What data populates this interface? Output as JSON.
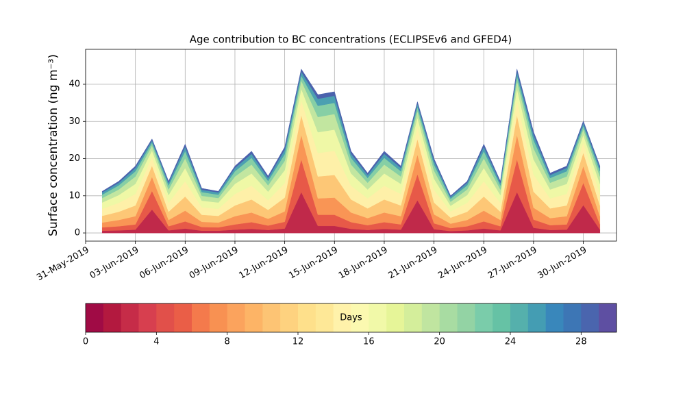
{
  "chart_data": {
    "type": "stacked_area",
    "title": "Age contribution to BC concentrations (ECLIPSEv6 and GFED4)",
    "y_label": "Surface concentration (ng m⁻³)",
    "x": [
      "2019-06-01",
      "2019-06-02",
      "2019-06-03",
      "2019-06-04",
      "2019-06-05",
      "2019-06-06",
      "2019-06-07",
      "2019-06-08",
      "2019-06-09",
      "2019-06-10",
      "2019-06-11",
      "2019-06-12",
      "2019-06-13",
      "2019-06-14",
      "2019-06-15",
      "2019-06-16",
      "2019-06-17",
      "2019-06-18",
      "2019-06-19",
      "2019-06-20",
      "2019-06-21",
      "2019-06-22",
      "2019-06-23",
      "2019-06-24",
      "2019-06-25",
      "2019-06-26",
      "2019-06-27",
      "2019-06-28",
      "2019-06-29",
      "2019-06-30",
      "2019-07-01"
    ],
    "xlim": [
      "2019-05-31",
      "2019-07-02"
    ],
    "xticks": [
      {
        "value": "2019-05-31",
        "label": "31-May-2019"
      },
      {
        "value": "2019-06-03",
        "label": "03-Jun-2019"
      },
      {
        "value": "2019-06-06",
        "label": "06-Jun-2019"
      },
      {
        "value": "2019-06-09",
        "label": "09-Jun-2019"
      },
      {
        "value": "2019-06-12",
        "label": "12-Jun-2019"
      },
      {
        "value": "2019-06-15",
        "label": "15-Jun-2019"
      },
      {
        "value": "2019-06-18",
        "label": "18-Jun-2019"
      },
      {
        "value": "2019-06-21",
        "label": "21-Jun-2019"
      },
      {
        "value": "2019-06-24",
        "label": "24-Jun-2019"
      },
      {
        "value": "2019-06-27",
        "label": "27-Jun-2019"
      },
      {
        "value": "2019-06-30",
        "label": "30-Jun-2019"
      }
    ],
    "ylim": [
      -2.2,
      49.4
    ],
    "yticks": [
      0,
      10,
      20,
      30,
      40
    ],
    "grid": true,
    "series": [
      {
        "color": "#c0294a",
        "values": [
          0.6,
          0.7,
          0.9,
          6.3,
          0.7,
          1.2,
          0.6,
          0.6,
          0.9,
          1.1,
          0.8,
          1.2,
          11.0,
          1.9,
          1.9,
          1.1,
          0.8,
          1.1,
          0.9,
          8.8,
          1.0,
          0.5,
          0.7,
          1.2,
          0.7,
          11.0,
          1.4,
          0.8,
          0.9,
          7.5,
          0.9
        ]
      },
      {
        "color": "#e75948",
        "values": [
          0.9,
          1.1,
          1.4,
          5.0,
          1.1,
          1.9,
          1.0,
          0.9,
          1.4,
          1.8,
          1.2,
          1.8,
          8.8,
          3.0,
          3.0,
          1.8,
          1.3,
          1.8,
          1.4,
          7.0,
          1.6,
          0.8,
          1.1,
          1.9,
          1.1,
          8.8,
          2.2,
          1.3,
          1.4,
          6.0,
          1.4
        ]
      },
      {
        "color": "#f99555",
        "values": [
          1.3,
          1.7,
          2.2,
          3.8,
          1.7,
          2.9,
          1.4,
          1.3,
          2.2,
          2.6,
          1.8,
          2.8,
          6.6,
          4.4,
          4.6,
          2.6,
          1.9,
          2.6,
          2.2,
          5.3,
          2.4,
          1.2,
          1.7,
          2.9,
          1.7,
          6.6,
          3.2,
          1.9,
          2.2,
          4.5,
          2.2
        ]
      },
      {
        "color": "#fdc776",
        "values": [
          1.8,
          2.2,
          2.9,
          3.0,
          2.2,
          3.8,
          1.9,
          1.8,
          2.9,
          3.5,
          2.4,
          3.7,
          5.3,
          5.9,
          6.1,
          3.5,
          2.6,
          3.5,
          2.9,
          4.2,
          3.2,
          1.6,
          2.2,
          3.8,
          2.2,
          5.3,
          4.3,
          2.6,
          2.9,
          3.6,
          2.9
        ]
      },
      {
        "color": "#fef0a8",
        "values": [
          1.9,
          2.4,
          3.1,
          2.3,
          2.4,
          4.1,
          2.0,
          1.9,
          3.1,
          3.7,
          2.6,
          3.9,
          4.0,
          6.3,
          6.5,
          3.7,
          2.7,
          3.7,
          3.1,
          3.2,
          3.4,
          1.7,
          2.4,
          4.1,
          2.4,
          4.0,
          4.6,
          2.7,
          3.1,
          2.7,
          3.1
        ]
      },
      {
        "color": "#eff8a6",
        "values": [
          1.7,
          2.1,
          2.7,
          1.8,
          2.1,
          3.6,
          1.8,
          1.7,
          2.7,
          3.3,
          2.3,
          3.5,
          3.1,
          5.6,
          5.7,
          3.3,
          2.4,
          3.3,
          2.7,
          2.5,
          3.0,
          1.5,
          2.1,
          3.6,
          2.1,
          3.1,
          4.1,
          2.4,
          2.7,
          2.1,
          2.7
        ]
      },
      {
        "color": "#c2e6a0",
        "values": [
          1.2,
          1.5,
          2.0,
          1.3,
          1.5,
          2.6,
          1.3,
          1.2,
          2.0,
          2.4,
          1.7,
          2.5,
          2.2,
          4.1,
          4.2,
          2.4,
          1.8,
          2.4,
          2.0,
          1.8,
          2.2,
          1.1,
          1.5,
          2.6,
          1.5,
          2.2,
          3.0,
          1.8,
          2.0,
          1.5,
          2.0
        ]
      },
      {
        "color": "#86cfa5",
        "values": [
          0.9,
          1.1,
          1.4,
          0.8,
          1.1,
          1.9,
          1.0,
          0.9,
          1.4,
          1.8,
          1.2,
          1.8,
          1.3,
          3.0,
          3.0,
          1.8,
          1.3,
          1.8,
          1.4,
          1.1,
          1.6,
          0.8,
          1.1,
          1.9,
          1.1,
          1.3,
          2.2,
          1.3,
          1.4,
          0.9,
          1.4
        ]
      },
      {
        "color": "#4ba0b1",
        "values": [
          0.6,
          0.7,
          0.9,
          0.6,
          0.7,
          1.2,
          0.6,
          0.6,
          0.9,
          1.1,
          0.8,
          1.2,
          1.1,
          1.9,
          1.9,
          1.1,
          0.8,
          1.1,
          0.9,
          0.9,
          1.0,
          0.5,
          0.7,
          1.2,
          0.7,
          1.1,
          1.4,
          0.8,
          0.9,
          0.8,
          0.9
        ]
      },
      {
        "color": "#4b62ad",
        "values": [
          0.3,
          0.4,
          0.5,
          0.4,
          0.4,
          0.7,
          0.4,
          0.3,
          0.5,
          0.7,
          0.5,
          0.7,
          0.7,
          1.1,
          1.1,
          0.7,
          0.5,
          0.7,
          0.5,
          0.5,
          0.6,
          0.3,
          0.4,
          0.7,
          0.4,
          0.7,
          0.8,
          0.5,
          0.5,
          0.5,
          0.5
        ]
      }
    ],
    "colorbar": {
      "label": "Days",
      "clim": [
        0,
        30
      ],
      "ticks": [
        0,
        4,
        8,
        12,
        16,
        20,
        24,
        28
      ],
      "colors": [
        "#a00b45",
        "#b3193f",
        "#c62c48",
        "#d73f4f",
        "#e1504a",
        "#ea5e47",
        "#f47a4c",
        "#f89152",
        "#fba35d",
        "#fdb466",
        "#fdc474",
        "#fed27f",
        "#fee08b",
        "#fee897",
        "#fff2aa",
        "#fbf9b0",
        "#f1f9a8",
        "#e6f598",
        "#d4ee9b",
        "#c0e5a0",
        "#a8dca2",
        "#93d3a4",
        "#7accaa",
        "#66c2a5",
        "#55b0ac",
        "#449db3",
        "#3987bb",
        "#3d76b5",
        "#4a65ae",
        "#5e4fa2"
      ]
    }
  }
}
